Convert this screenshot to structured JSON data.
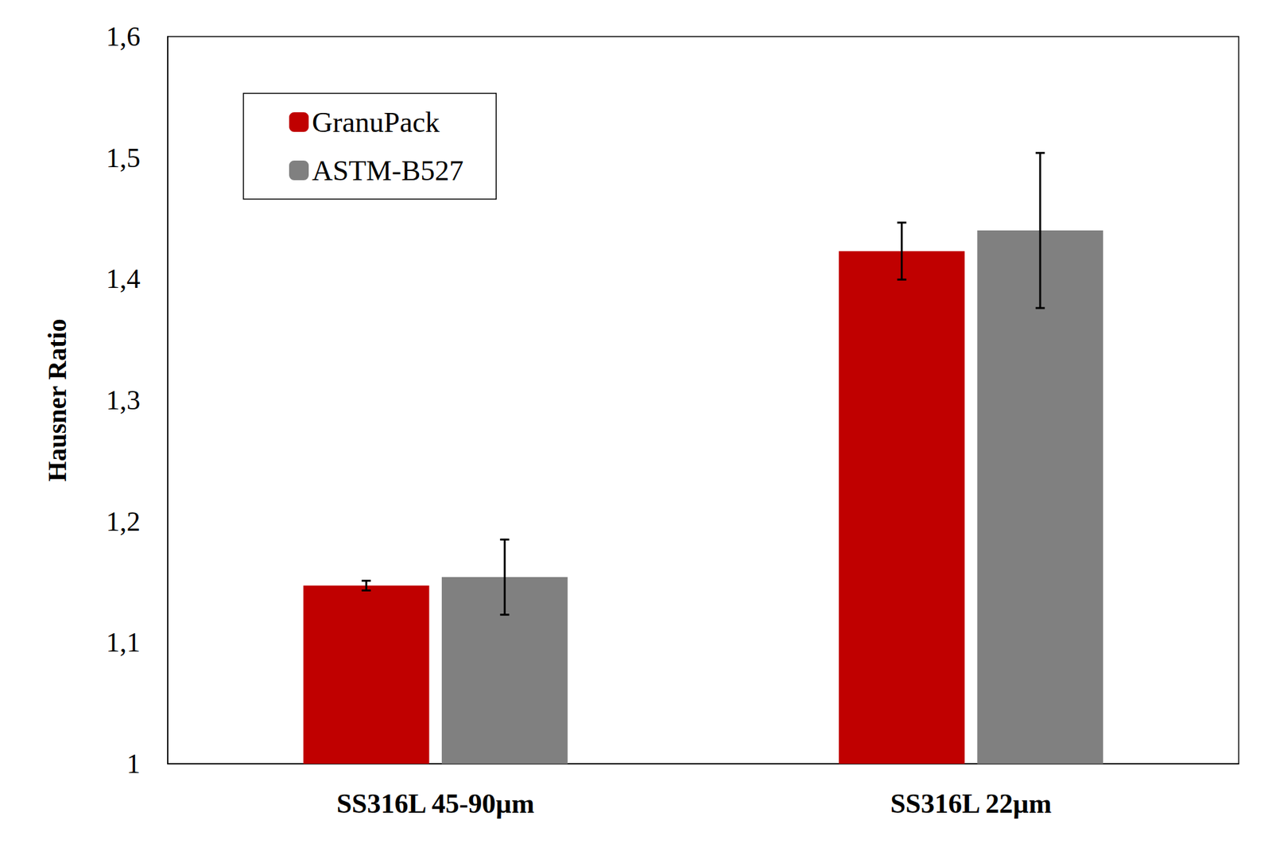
{
  "chart_data": {
    "type": "bar",
    "y_label": "Hausner Ratio",
    "categories": [
      "SS316L 45-90µm",
      "SS316L 22µm"
    ],
    "series": [
      {
        "name": "GranuPack",
        "color": "#c00000",
        "values": [
          1.147,
          1.423
        ],
        "errors": [
          0.004,
          0.0235
        ]
      },
      {
        "name": "ASTM-B527",
        "color": "#808080",
        "values": [
          1.154,
          1.44
        ],
        "errors": [
          0.031,
          0.064
        ]
      }
    ],
    "ylim": [
      1,
      1.6
    ],
    "yticks": [
      1,
      {
        "value": 1.1,
        "label": "1,1"
      },
      {
        "value": 1.2,
        "label": "1,2"
      },
      {
        "value": 1.3,
        "label": "1,3"
      },
      {
        "value": 1.4,
        "label": "1,4"
      },
      {
        "value": 1.5,
        "label": "1,5"
      },
      {
        "value": 1.6,
        "label": "1,6"
      }
    ],
    "grid": false,
    "legend": "upper left"
  }
}
